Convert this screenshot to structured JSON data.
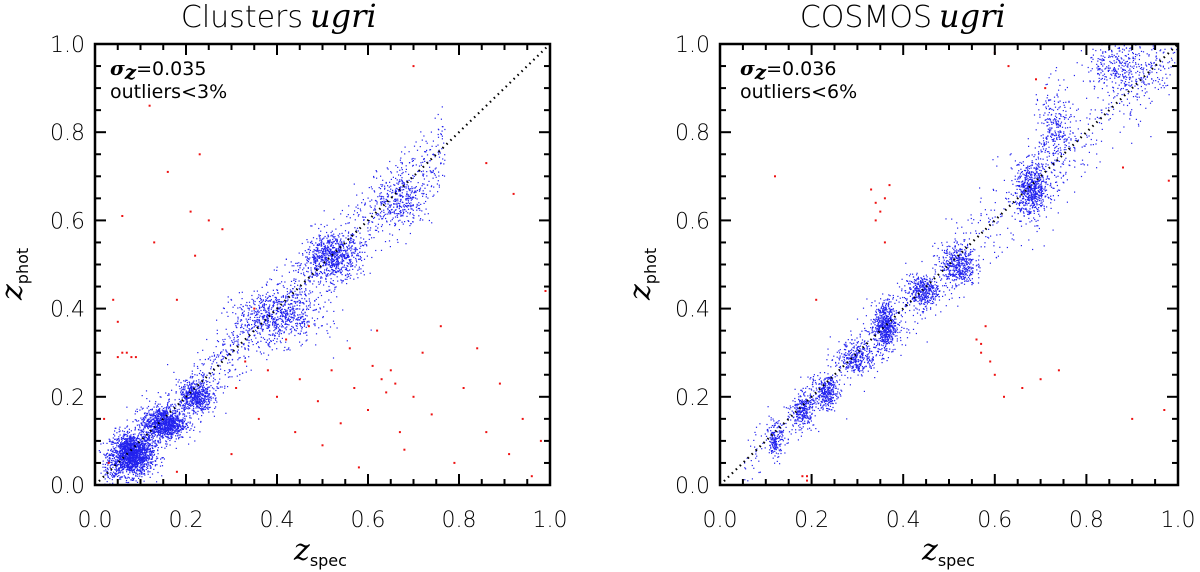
{
  "colors": {
    "members": "#2222ee",
    "outliers": "#ee1111",
    "frame": "#000000",
    "reference_line": "#000000"
  },
  "chart_data": [
    {
      "type": "scatter",
      "title": "Clusters",
      "title_italic": "ugri",
      "xlabel": "z",
      "xlabel_sub": "spec",
      "ylabel": "z",
      "ylabel_sub": "phot",
      "xlim": [
        0.0,
        1.0
      ],
      "ylim": [
        0.0,
        1.0
      ],
      "x_ticks": [
        "0.0",
        "0.2",
        "0.4",
        "0.6",
        "0.8",
        "1.0"
      ],
      "y_ticks": [
        "0.0",
        "0.2",
        "0.4",
        "0.6",
        "0.8",
        "1.0"
      ],
      "annotation": {
        "sigma_symbol": "σ",
        "sigma_sub": "z",
        "sigma_value": "=0.035",
        "outliers": "outliers<3%"
      },
      "reference_line": "y = x",
      "grid": false,
      "sigma_z": 0.035,
      "outlier_fraction_max_percent": 3,
      "member_density_clusters": [
        {
          "x": 0.08,
          "y": 0.07,
          "spread_x": 0.04,
          "spread_y": 0.04,
          "weight": 0.3
        },
        {
          "x": 0.15,
          "y": 0.14,
          "spread_x": 0.04,
          "spread_y": 0.03,
          "weight": 0.18
        },
        {
          "x": 0.22,
          "y": 0.2,
          "spread_x": 0.03,
          "spread_y": 0.03,
          "weight": 0.1
        },
        {
          "x": 0.4,
          "y": 0.38,
          "spread_x": 0.08,
          "spread_y": 0.05,
          "weight": 0.12
        },
        {
          "x": 0.52,
          "y": 0.52,
          "spread_x": 0.05,
          "spread_y": 0.04,
          "weight": 0.12
        },
        {
          "x": 0.68,
          "y": 0.65,
          "spread_x": 0.05,
          "spread_y": 0.05,
          "weight": 0.05
        }
      ],
      "outlier_points_sample": [
        [
          0.02,
          0.15
        ],
        [
          0.03,
          0.05
        ],
        [
          0.05,
          0.29
        ],
        [
          0.06,
          0.3
        ],
        [
          0.07,
          0.3
        ],
        [
          0.08,
          0.29
        ],
        [
          0.05,
          0.37
        ],
        [
          0.09,
          0.29
        ],
        [
          0.04,
          0.42
        ],
        [
          0.06,
          0.61
        ],
        [
          0.13,
          0.55
        ],
        [
          0.18,
          0.42
        ],
        [
          0.22,
          0.52
        ],
        [
          0.25,
          0.6
        ],
        [
          0.16,
          0.71
        ],
        [
          0.21,
          0.62
        ],
        [
          0.28,
          0.58
        ],
        [
          0.23,
          0.75
        ],
        [
          0.31,
          0.22
        ],
        [
          0.33,
          0.28
        ],
        [
          0.35,
          0.4
        ],
        [
          0.36,
          0.15
        ],
        [
          0.38,
          0.26
        ],
        [
          0.4,
          0.2
        ],
        [
          0.42,
          0.33
        ],
        [
          0.44,
          0.12
        ],
        [
          0.45,
          0.24
        ],
        [
          0.47,
          0.36
        ],
        [
          0.49,
          0.19
        ],
        [
          0.5,
          0.09
        ],
        [
          0.52,
          0.26
        ],
        [
          0.54,
          0.14
        ],
        [
          0.56,
          0.31
        ],
        [
          0.57,
          0.22
        ],
        [
          0.58,
          0.04
        ],
        [
          0.6,
          0.17
        ],
        [
          0.61,
          0.27
        ],
        [
          0.62,
          0.35
        ],
        [
          0.63,
          0.24
        ],
        [
          0.64,
          0.21
        ],
        [
          0.65,
          0.26
        ],
        [
          0.66,
          0.23
        ],
        [
          0.67,
          0.12
        ],
        [
          0.68,
          0.08
        ],
        [
          0.7,
          0.2
        ],
        [
          0.72,
          0.3
        ],
        [
          0.74,
          0.16
        ],
        [
          0.76,
          0.36
        ],
        [
          0.79,
          0.05
        ],
        [
          0.81,
          0.22
        ],
        [
          0.84,
          0.31
        ],
        [
          0.86,
          0.12
        ],
        [
          0.89,
          0.23
        ],
        [
          0.91,
          0.07
        ],
        [
          0.94,
          0.15
        ],
        [
          0.96,
          0.02
        ],
        [
          0.98,
          0.1
        ],
        [
          0.99,
          0.44
        ],
        [
          0.92,
          0.66
        ],
        [
          0.86,
          0.73
        ],
        [
          0.18,
          0.03
        ],
        [
          0.24,
          0.0
        ],
        [
          0.3,
          0.07
        ],
        [
          0.42,
          0.0
        ],
        [
          0.7,
          0.95
        ],
        [
          0.12,
          0.86
        ]
      ]
    },
    {
      "type": "scatter",
      "title": "COSMOS",
      "title_italic": "ugri",
      "xlabel": "z",
      "xlabel_sub": "spec",
      "ylabel": "z",
      "ylabel_sub": "phot",
      "xlim": [
        0.0,
        1.0
      ],
      "ylim": [
        0.0,
        1.0
      ],
      "x_ticks": [
        "0.0",
        "0.2",
        "0.4",
        "0.6",
        "0.8",
        "1.0"
      ],
      "y_ticks": [
        "0.0",
        "0.2",
        "0.4",
        "0.6",
        "0.8",
        "1.0"
      ],
      "annotation": {
        "sigma_symbol": "σ",
        "sigma_sub": "z",
        "sigma_value": "=0.036",
        "outliers": "outliers<6%"
      },
      "reference_line": "y = x",
      "grid": false,
      "sigma_z": 0.036,
      "outlier_fraction_max_percent": 6,
      "member_density_clusters": [
        {
          "x": 0.12,
          "y": 0.1,
          "spread_x": 0.01,
          "spread_y": 0.03,
          "weight": 0.04
        },
        {
          "x": 0.18,
          "y": 0.17,
          "spread_x": 0.02,
          "spread_y": 0.03,
          "weight": 0.07
        },
        {
          "x": 0.23,
          "y": 0.21,
          "spread_x": 0.02,
          "spread_y": 0.03,
          "weight": 0.08
        },
        {
          "x": 0.3,
          "y": 0.29,
          "spread_x": 0.03,
          "spread_y": 0.03,
          "weight": 0.08
        },
        {
          "x": 0.36,
          "y": 0.36,
          "spread_x": 0.02,
          "spread_y": 0.05,
          "weight": 0.16
        },
        {
          "x": 0.44,
          "y": 0.44,
          "spread_x": 0.03,
          "spread_y": 0.03,
          "weight": 0.1
        },
        {
          "x": 0.52,
          "y": 0.5,
          "spread_x": 0.03,
          "spread_y": 0.04,
          "weight": 0.12
        },
        {
          "x": 0.68,
          "y": 0.67,
          "spread_x": 0.03,
          "spread_y": 0.05,
          "weight": 0.17
        },
        {
          "x": 0.73,
          "y": 0.8,
          "spread_x": 0.03,
          "spread_y": 0.09,
          "weight": 0.08
        },
        {
          "x": 0.88,
          "y": 0.95,
          "spread_x": 0.07,
          "spread_y": 0.05,
          "weight": 0.1
        }
      ],
      "outlier_points_sample": [
        [
          0.12,
          0.7
        ],
        [
          0.18,
          0.02
        ],
        [
          0.19,
          0.01
        ],
        [
          0.19,
          0.02
        ],
        [
          0.21,
          0.42
        ],
        [
          0.33,
          0.67
        ],
        [
          0.34,
          0.64
        ],
        [
          0.34,
          0.6
        ],
        [
          0.36,
          0.65
        ],
        [
          0.37,
          0.68
        ],
        [
          0.36,
          0.55
        ],
        [
          0.35,
          0.62
        ],
        [
          0.57,
          0.32
        ],
        [
          0.57,
          0.3
        ],
        [
          0.58,
          0.36
        ],
        [
          0.59,
          0.28
        ],
        [
          0.56,
          0.33
        ],
        [
          0.6,
          0.25
        ],
        [
          0.62,
          0.2
        ],
        [
          0.66,
          0.22
        ],
        [
          0.7,
          0.24
        ],
        [
          0.74,
          0.26
        ],
        [
          0.69,
          0.92
        ],
        [
          0.71,
          0.9
        ],
        [
          0.63,
          0.95
        ],
        [
          0.6,
          0.98
        ],
        [
          0.88,
          0.72
        ],
        [
          0.9,
          0.15
        ],
        [
          0.97,
          0.17
        ],
        [
          1.0,
          0.22
        ],
        [
          0.98,
          0.69
        ]
      ]
    }
  ]
}
